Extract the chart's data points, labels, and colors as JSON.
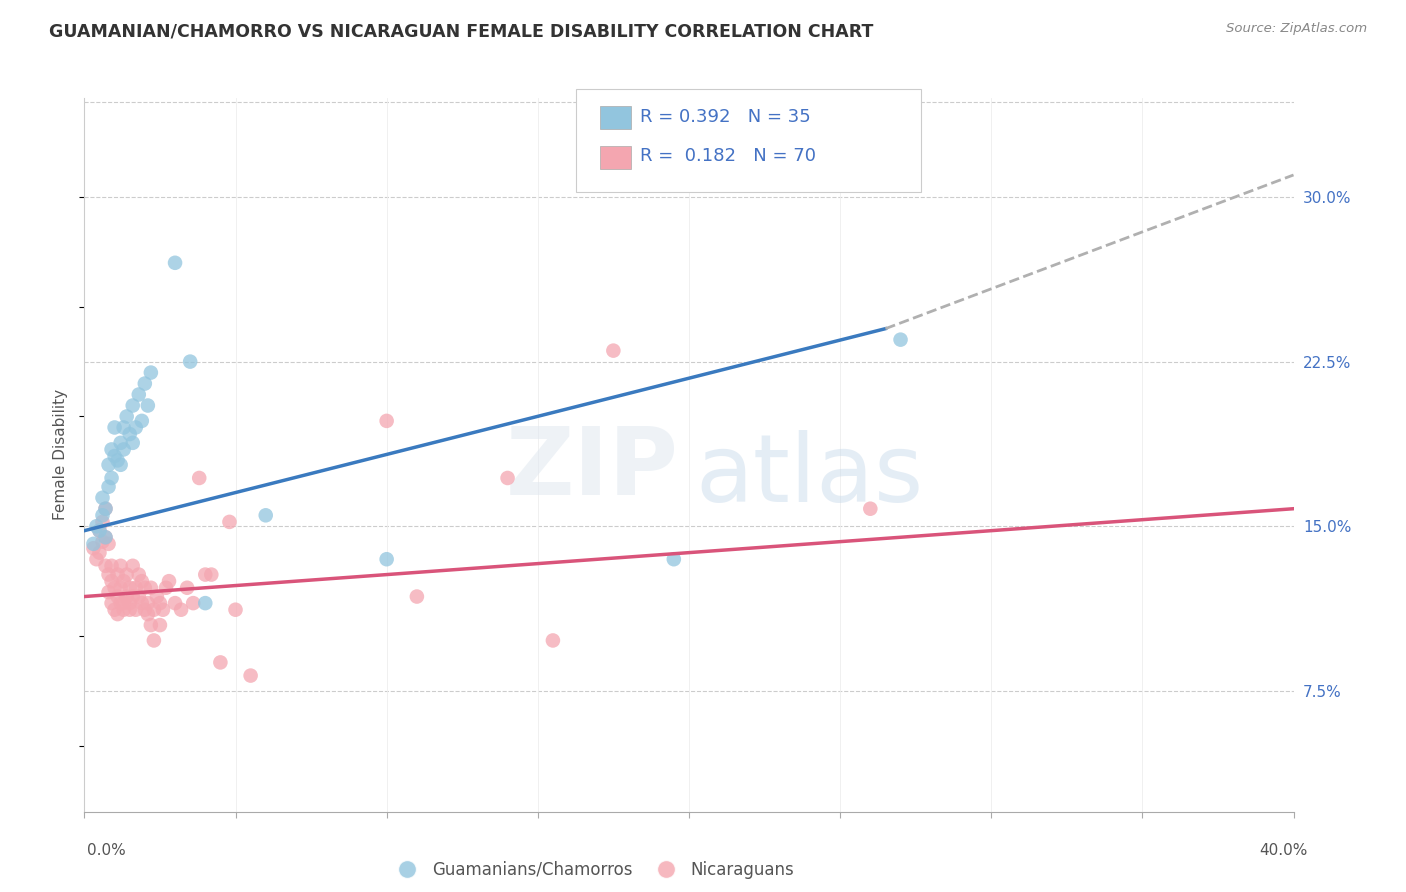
{
  "title": "GUAMANIAN/CHAMORRO VS NICARAGUAN FEMALE DISABILITY CORRELATION CHART",
  "source": "Source: ZipAtlas.com",
  "ylabel": "Female Disability",
  "ytick_labels": [
    "7.5%",
    "15.0%",
    "22.5%",
    "30.0%"
  ],
  "ytick_values": [
    0.075,
    0.15,
    0.225,
    0.3
  ],
  "xlim": [
    0.0,
    0.4
  ],
  "ylim": [
    0.02,
    0.345
  ],
  "blue_color": "#92c5de",
  "pink_color": "#f4a6b0",
  "blue_line_color": "#3a7abf",
  "pink_line_color": "#d9547a",
  "dashed_line_color": "#b0b0b0",
  "legend_blue_text": "R = 0.392   N = 35",
  "legend_pink_text": "R =  0.182   N = 70",
  "legend_text_color": "#4472c4",
  "guamanians_points": [
    [
      0.003,
      0.142
    ],
    [
      0.004,
      0.15
    ],
    [
      0.005,
      0.148
    ],
    [
      0.006,
      0.155
    ],
    [
      0.006,
      0.163
    ],
    [
      0.007,
      0.158
    ],
    [
      0.007,
      0.145
    ],
    [
      0.008,
      0.168
    ],
    [
      0.008,
      0.178
    ],
    [
      0.009,
      0.172
    ],
    [
      0.009,
      0.185
    ],
    [
      0.01,
      0.195
    ],
    [
      0.01,
      0.182
    ],
    [
      0.011,
      0.18
    ],
    [
      0.012,
      0.188
    ],
    [
      0.012,
      0.178
    ],
    [
      0.013,
      0.195
    ],
    [
      0.013,
      0.185
    ],
    [
      0.014,
      0.2
    ],
    [
      0.015,
      0.192
    ],
    [
      0.016,
      0.205
    ],
    [
      0.016,
      0.188
    ],
    [
      0.017,
      0.195
    ],
    [
      0.018,
      0.21
    ],
    [
      0.019,
      0.198
    ],
    [
      0.02,
      0.215
    ],
    [
      0.021,
      0.205
    ],
    [
      0.022,
      0.22
    ],
    [
      0.03,
      0.27
    ],
    [
      0.035,
      0.225
    ],
    [
      0.04,
      0.115
    ],
    [
      0.06,
      0.155
    ],
    [
      0.1,
      0.135
    ],
    [
      0.195,
      0.135
    ],
    [
      0.27,
      0.235
    ]
  ],
  "nicaraguan_points": [
    [
      0.003,
      0.14
    ],
    [
      0.004,
      0.135
    ],
    [
      0.005,
      0.148
    ],
    [
      0.005,
      0.138
    ],
    [
      0.006,
      0.152
    ],
    [
      0.006,
      0.143
    ],
    [
      0.007,
      0.145
    ],
    [
      0.007,
      0.132
    ],
    [
      0.007,
      0.158
    ],
    [
      0.008,
      0.128
    ],
    [
      0.008,
      0.12
    ],
    [
      0.008,
      0.142
    ],
    [
      0.009,
      0.125
    ],
    [
      0.009,
      0.132
    ],
    [
      0.009,
      0.115
    ],
    [
      0.01,
      0.122
    ],
    [
      0.01,
      0.112
    ],
    [
      0.011,
      0.128
    ],
    [
      0.011,
      0.118
    ],
    [
      0.011,
      0.11
    ],
    [
      0.012,
      0.122
    ],
    [
      0.012,
      0.115
    ],
    [
      0.012,
      0.132
    ],
    [
      0.013,
      0.115
    ],
    [
      0.013,
      0.125
    ],
    [
      0.013,
      0.112
    ],
    [
      0.014,
      0.128
    ],
    [
      0.014,
      0.118
    ],
    [
      0.015,
      0.115
    ],
    [
      0.015,
      0.122
    ],
    [
      0.015,
      0.112
    ],
    [
      0.016,
      0.132
    ],
    [
      0.016,
      0.118
    ],
    [
      0.017,
      0.122
    ],
    [
      0.017,
      0.112
    ],
    [
      0.018,
      0.128
    ],
    [
      0.018,
      0.118
    ],
    [
      0.019,
      0.125
    ],
    [
      0.019,
      0.115
    ],
    [
      0.02,
      0.112
    ],
    [
      0.02,
      0.122
    ],
    [
      0.021,
      0.11
    ],
    [
      0.021,
      0.115
    ],
    [
      0.022,
      0.105
    ],
    [
      0.022,
      0.122
    ],
    [
      0.023,
      0.098
    ],
    [
      0.023,
      0.112
    ],
    [
      0.024,
      0.118
    ],
    [
      0.025,
      0.115
    ],
    [
      0.025,
      0.105
    ],
    [
      0.026,
      0.112
    ],
    [
      0.027,
      0.122
    ],
    [
      0.028,
      0.125
    ],
    [
      0.03,
      0.115
    ],
    [
      0.032,
      0.112
    ],
    [
      0.034,
      0.122
    ],
    [
      0.036,
      0.115
    ],
    [
      0.038,
      0.172
    ],
    [
      0.04,
      0.128
    ],
    [
      0.042,
      0.128
    ],
    [
      0.045,
      0.088
    ],
    [
      0.048,
      0.152
    ],
    [
      0.05,
      0.112
    ],
    [
      0.055,
      0.082
    ],
    [
      0.1,
      0.198
    ],
    [
      0.11,
      0.118
    ],
    [
      0.14,
      0.172
    ],
    [
      0.155,
      0.098
    ],
    [
      0.175,
      0.23
    ],
    [
      0.26,
      0.158
    ]
  ],
  "blue_trendline": [
    [
      0.0,
      0.148
    ],
    [
      0.265,
      0.24
    ]
  ],
  "blue_trendline_extended": [
    [
      0.265,
      0.24
    ],
    [
      0.4,
      0.31
    ]
  ],
  "pink_trendline": [
    [
      0.0,
      0.118
    ],
    [
      0.4,
      0.158
    ]
  ]
}
